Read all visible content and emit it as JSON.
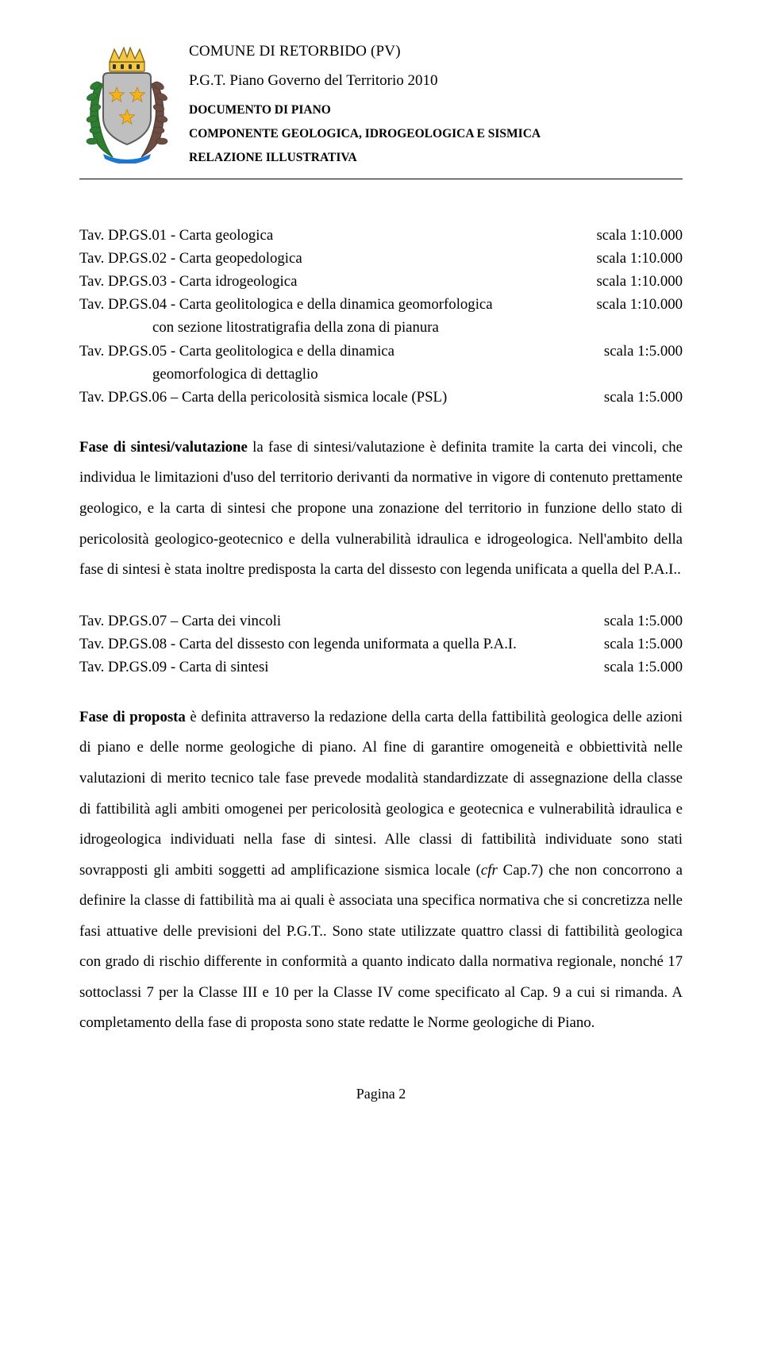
{
  "header": {
    "comune": "COMUNE DI RETORBIDO (PV)",
    "pgt": "P.G.T. Piano Governo del Territorio 2010",
    "doc": "DOCUMENTO DI PIANO",
    "comp": "COMPONENTE GEOLOGICA, IDROGEOLOGICA E SISMICA",
    "rel": "RELAZIONE ILLUSTRATIVA"
  },
  "crest": {
    "crown_fill": "#f2c744",
    "crown_stroke": "#7a5a12",
    "shield_fill": "#bfbfbf",
    "shield_stroke": "#5d5d5d",
    "star_fill": "#f6b21a",
    "leaf_left": "#2e7d32",
    "leaf_right": "#6d4c41",
    "ribbon": "#1976d2"
  },
  "tav_group1": [
    {
      "label": "Tav. DP.GS.01 - Carta geologica",
      "scale": "scala 1:10.000"
    },
    {
      "label": "Tav. DP.GS.02 - Carta geopedologica",
      "scale": "scala 1:10.000"
    },
    {
      "label": "Tav. DP.GS.03 - Carta idrogeologica",
      "scale": "scala 1:10.000"
    },
    {
      "label": "Tav. DP.GS.04 - Carta geolitologica e della dinamica geomorfologica",
      "scale": "scala 1:10.000",
      "cont": "con sezione litostratigrafia della zona di pianura"
    },
    {
      "label": "Tav. DP.GS.05 - Carta geolitologica e della dinamica",
      "scale": "scala 1:5.000",
      "cont": "geomorfologica di dettaglio"
    },
    {
      "label": "Tav. DP.GS.06 – Carta della pericolosità sismica locale (PSL)",
      "scale": "scala 1:5.000"
    }
  ],
  "para1": {
    "lead": "Fase di sintesi/valutazione",
    "rest": " la fase di sintesi/valutazione è definita tramite la carta dei vincoli, che individua le limitazioni d'uso del territorio derivanti da normative in vigore di contenuto prettamente geologico, e la carta di sintesi che propone una zonazione del territorio in funzione dello stato di pericolosità geologico-geotecnico e della vulnerabilità idraulica e idrogeologica. Nell'ambito della fase di sintesi è stata inoltre predisposta la carta del dissesto con legenda unificata a quella del P.A.I.."
  },
  "tav_group2": [
    {
      "label": "Tav. DP.GS.07 – Carta dei vincoli",
      "scale": "scala 1:5.000"
    },
    {
      "label": "Tav. DP.GS.08 - Carta del dissesto con legenda uniformata a quella P.A.I.",
      "scale": "scala 1:5.000"
    },
    {
      "label": "Tav. DP.GS.09 - Carta di sintesi",
      "scale": "scala 1:5.000"
    }
  ],
  "para2": {
    "lead": "Fase di proposta",
    "rest_a": " è definita attraverso la redazione della carta della fattibilità geologica delle azioni di piano e delle norme geologiche di piano. Al fine di garantire omogeneità e obbiettività nelle valutazioni di merito tecnico tale fase prevede modalità standardizzate di assegnazione della classe di fattibilità agli ambiti omogenei per pericolosità geologica e geotecnica e vulnerabilità idraulica e idrogeologica individuati nella fase di sintesi. Alle classi di fattibilità individuate sono stati sovrapposti gli ambiti soggetti ad amplificazione sismica locale (",
    "cfr": "cfr",
    "rest_b": " Cap.7) che non concorrono a definire la classe di fattibilità ma ai quali è associata una specifica normativa che si concretizza nelle fasi attuative delle previsioni del P.G.T.. Sono state utilizzate quattro classi di fattibilità geologica con grado di rischio differente in conformità a quanto indicato dalla normativa regionale, nonché 17 sottoclassi 7 per la Classe III e 10 per la Classe IV come specificato al Cap. 9 a cui si rimanda. A completamento della fase di proposta sono state redatte le Norme geologiche di Piano."
  },
  "footer": {
    "page": "Pagina 2"
  }
}
